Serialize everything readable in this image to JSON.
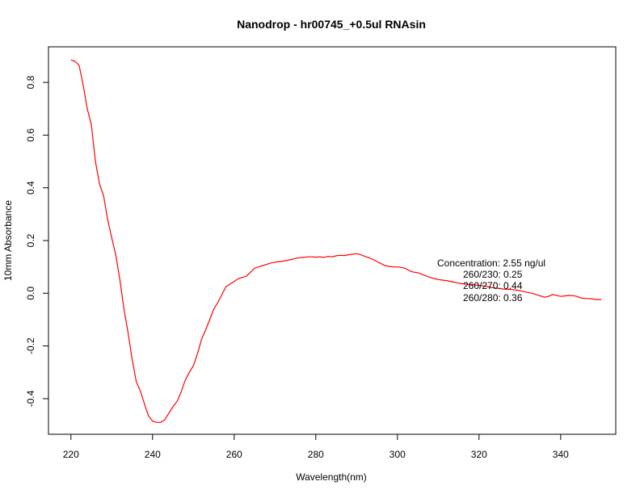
{
  "chart_data": {
    "type": "line",
    "title": "Nanodrop - hr00745_+0.5ul RNAsin",
    "xlabel": "Wavelength(nm)",
    "ylabel": "10mm Absorbance",
    "xlim": [
      214.5,
      353.5
    ],
    "ylim": [
      -0.535,
      0.935
    ],
    "x_ticks": [
      220,
      240,
      260,
      280,
      300,
      320,
      340
    ],
    "y_ticks": [
      -0.4,
      -0.2,
      0.0,
      0.2,
      0.4,
      0.6,
      0.8
    ],
    "x_tick_labels": [
      "220",
      "240",
      "260",
      "280",
      "300",
      "320",
      "340"
    ],
    "y_tick_labels": [
      "-0.4",
      "-0.2",
      "0.0",
      "0.2",
      "0.4",
      "0.6",
      "0.8"
    ],
    "grid": false,
    "series": [
      {
        "color": "#ff0000",
        "x": [
          220,
          221,
          222,
          223,
          224,
          225,
          226,
          227,
          228,
          229,
          230,
          231,
          232,
          233,
          234,
          235,
          236,
          237,
          238,
          239,
          240,
          241,
          242,
          243,
          244,
          245,
          246,
          247,
          248,
          249,
          250,
          251,
          252,
          253,
          254,
          255,
          256,
          257,
          258,
          259,
          260,
          261,
          262,
          263,
          264,
          265,
          266,
          267,
          268,
          269,
          270,
          271,
          272,
          273,
          274,
          275,
          276,
          277,
          278,
          279,
          280,
          281,
          282,
          283,
          284,
          285,
          286,
          287,
          288,
          289,
          290,
          291,
          292,
          293,
          294,
          295,
          296,
          297,
          298,
          299,
          300,
          301,
          302,
          303,
          304,
          305,
          306,
          307,
          308,
          309,
          310,
          311,
          312,
          313,
          314,
          315,
          316,
          317,
          318,
          319,
          320,
          321,
          322,
          323,
          324,
          325,
          326,
          327,
          328,
          329,
          330,
          331,
          332,
          333,
          334,
          335,
          336,
          337,
          338,
          339,
          340,
          341,
          342,
          343,
          344,
          345,
          346,
          347,
          348,
          349,
          350
        ],
        "y": [
          0.885,
          0.88,
          0.865,
          0.79,
          0.7,
          0.64,
          0.5,
          0.415,
          0.37,
          0.28,
          0.21,
          0.145,
          0.05,
          -0.06,
          -0.15,
          -0.25,
          -0.335,
          -0.37,
          -0.42,
          -0.465,
          -0.485,
          -0.49,
          -0.49,
          -0.48,
          -0.455,
          -0.43,
          -0.41,
          -0.375,
          -0.33,
          -0.3,
          -0.275,
          -0.23,
          -0.175,
          -0.14,
          -0.1,
          -0.06,
          -0.035,
          -0.005,
          0.025,
          0.035,
          0.045,
          0.055,
          0.06,
          0.065,
          0.08,
          0.095,
          0.1,
          0.105,
          0.11,
          0.115,
          0.118,
          0.12,
          0.122,
          0.125,
          0.128,
          0.132,
          0.135,
          0.136,
          0.138,
          0.138,
          0.137,
          0.138,
          0.136,
          0.14,
          0.138,
          0.142,
          0.144,
          0.143,
          0.146,
          0.148,
          0.15,
          0.146,
          0.14,
          0.135,
          0.128,
          0.12,
          0.112,
          0.105,
          0.102,
          0.1,
          0.1,
          0.098,
          0.094,
          0.085,
          0.08,
          0.078,
          0.072,
          0.066,
          0.06,
          0.056,
          0.052,
          0.05,
          0.048,
          0.045,
          0.042,
          0.038,
          0.036,
          0.034,
          0.033,
          0.032,
          0.03,
          0.028,
          0.025,
          0.022,
          0.02,
          0.018,
          0.016,
          0.015,
          0.014,
          0.012,
          0.01,
          0.006,
          0.003,
          0.0,
          -0.005,
          -0.01,
          -0.015,
          -0.012,
          -0.005,
          -0.008,
          -0.012,
          -0.01,
          -0.008,
          -0.009,
          -0.012,
          -0.018,
          -0.02,
          -0.02,
          -0.022,
          -0.024,
          -0.024
        ]
      }
    ],
    "annotations": [
      "Concentration: 2.55 ng/ul",
      "260/230: 0.25",
      "260/270: 0.44",
      "260/280: 0.36"
    ]
  }
}
